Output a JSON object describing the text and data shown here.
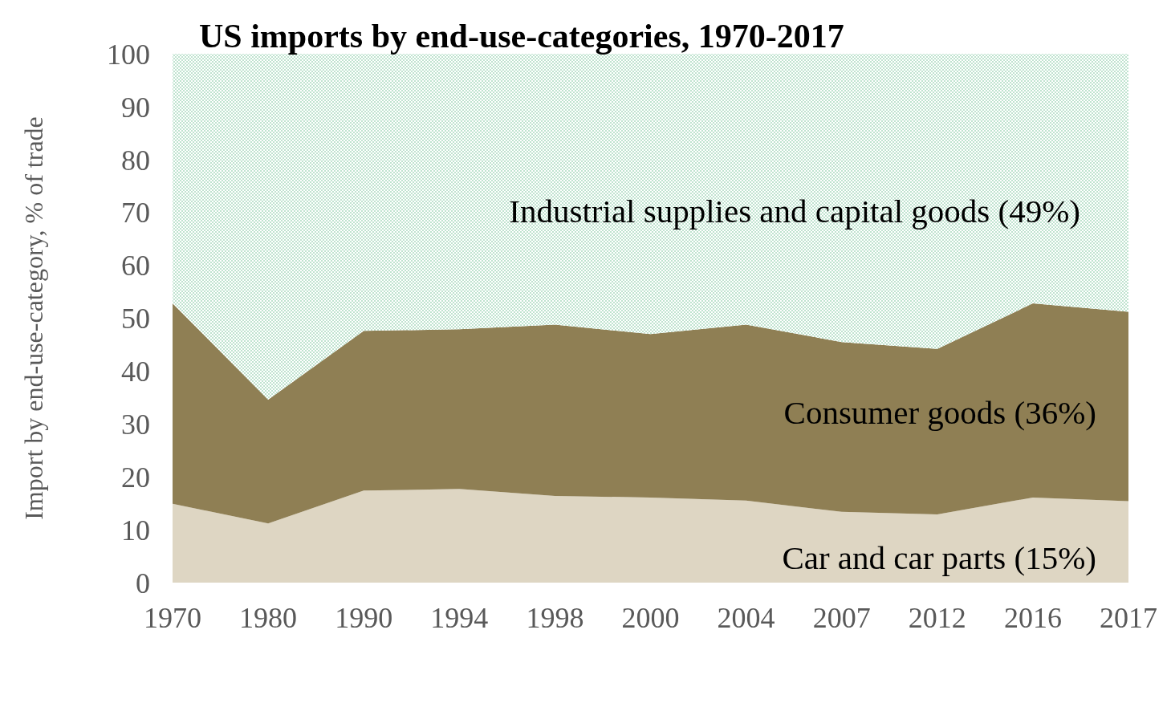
{
  "chart_data": {
    "type": "area",
    "stacked": true,
    "title": "US imports by end-use-categories, 1970-2017",
    "ylabel": "Import by end-use-category, % of trade",
    "categories": [
      "1970",
      "1980",
      "1990",
      "1994",
      "1998",
      "2000",
      "2004",
      "2007",
      "2012",
      "2016",
      "2017"
    ],
    "series": [
      {
        "name": "Car and car parts (15%)",
        "color": "#ded6c3",
        "values": [
          14.9,
          11.2,
          17.4,
          17.7,
          16.4,
          16.1,
          15.5,
          13.4,
          12.9,
          16.1,
          15.4
        ]
      },
      {
        "name": "Consumer goods (36%)",
        "color": "#8f7f54",
        "values": [
          37.9,
          23.4,
          30.2,
          30.2,
          32.4,
          30.9,
          33.3,
          32.1,
          31.3,
          36.7,
          35.8
        ]
      },
      {
        "name": "Industrial supplies and capital goods (49%)",
        "color": "#bfe3cf",
        "values": [
          47.2,
          65.4,
          52.4,
          52.1,
          51.2,
          53.0,
          51.2,
          54.5,
          55.8,
          47.2,
          48.8
        ]
      }
    ],
    "ylim": [
      0,
      100
    ],
    "yticks": [
      0,
      10,
      20,
      30,
      40,
      50,
      60,
      70,
      80,
      90,
      100
    ],
    "grid": false
  }
}
